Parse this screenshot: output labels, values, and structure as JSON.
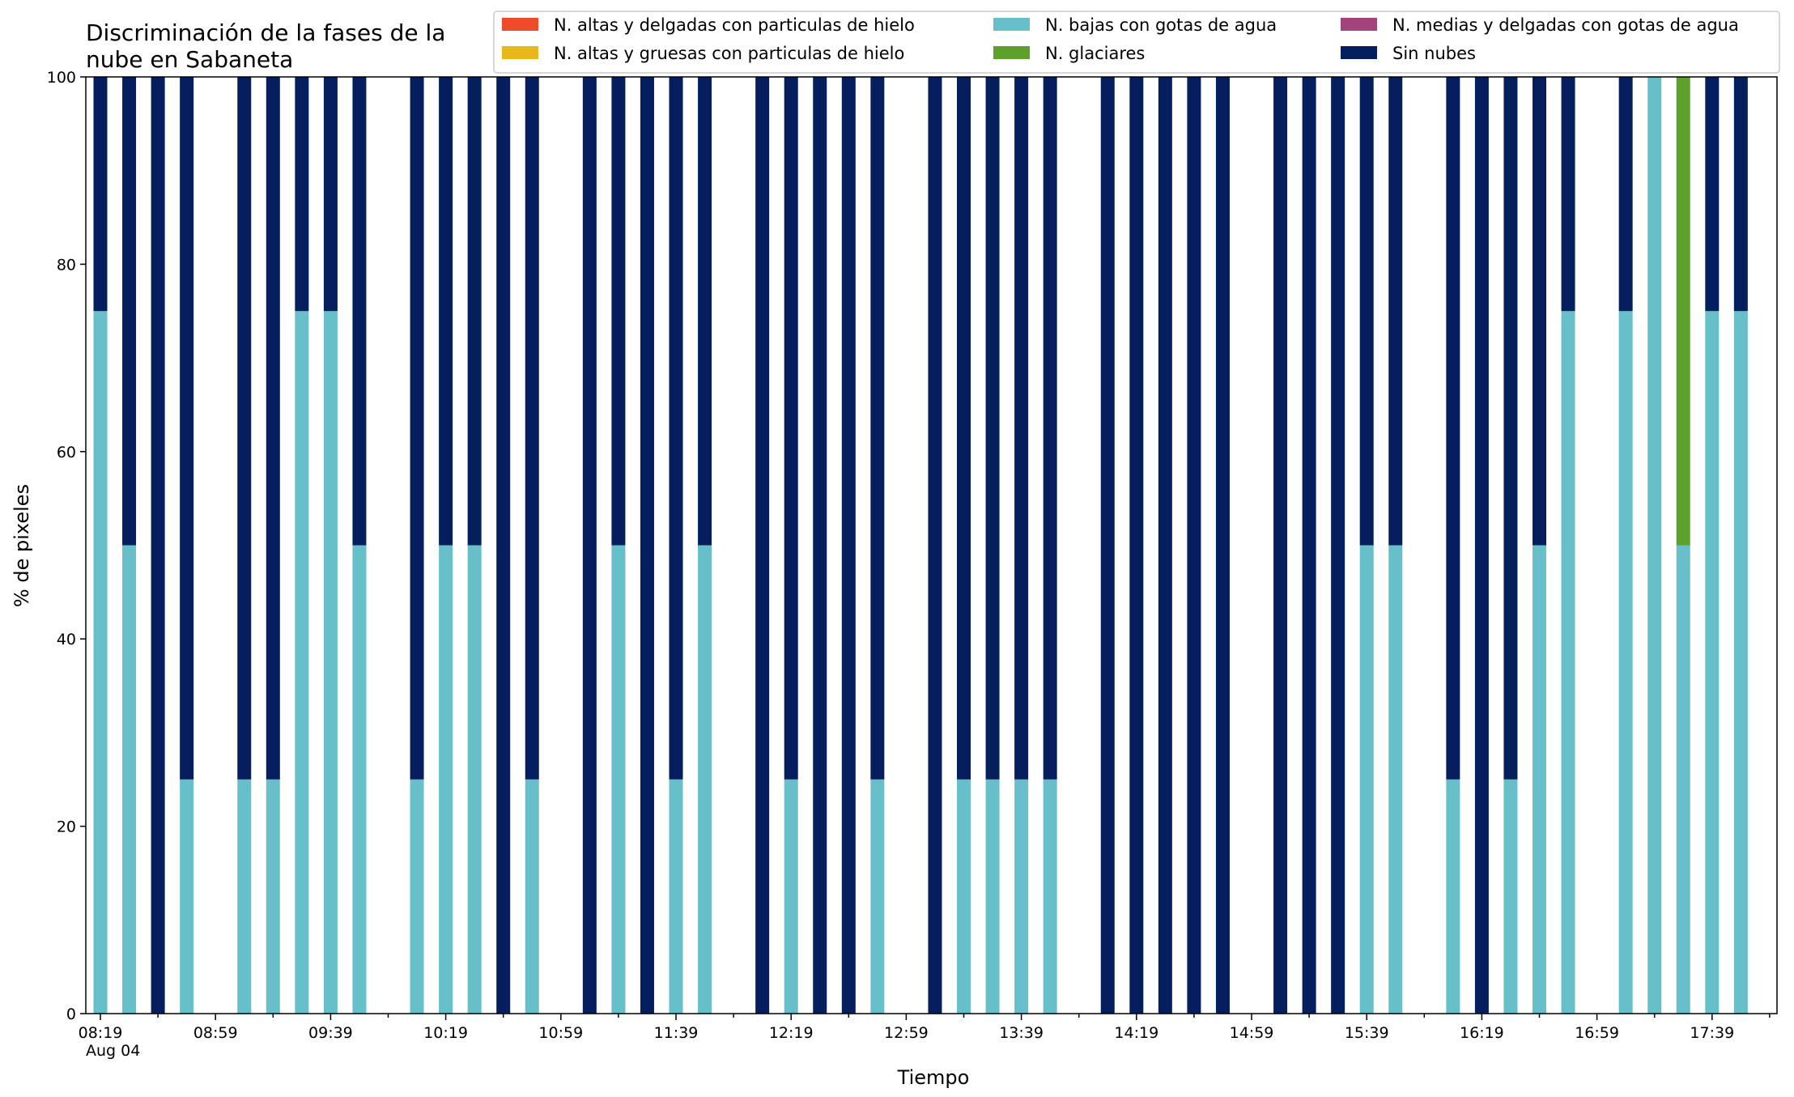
{
  "chart_data": {
    "type": "bar",
    "stacked": true,
    "title_lines": [
      "Discriminación de la fases de la",
      "nube en Sabaneta"
    ],
    "xlabel": "Tiempo",
    "ylabel": "% de pixeles",
    "ylim": [
      0,
      100
    ],
    "yticks": [
      0,
      20,
      40,
      60,
      80,
      100
    ],
    "grid": false,
    "legend_position": "top-right",
    "xtick_labels": [
      "08:19",
      "08:59",
      "09:39",
      "10:19",
      "10:59",
      "11:39",
      "12:19",
      "12:59",
      "13:39",
      "14:19",
      "14:59",
      "15:39",
      "16:19",
      "16:59",
      "17:39"
    ],
    "xtick_date": "Aug 04",
    "times": [
      "08:19",
      "08:29",
      "08:39",
      "08:49",
      "08:59",
      "09:09",
      "09:19",
      "09:29",
      "09:39",
      "09:49",
      "09:59",
      "10:09",
      "10:19",
      "10:29",
      "10:39",
      "10:49",
      "10:59",
      "11:09",
      "11:19",
      "11:29",
      "11:39",
      "11:49",
      "11:59",
      "12:09",
      "12:19",
      "12:29",
      "12:39",
      "12:49",
      "12:59",
      "13:09",
      "13:19",
      "13:29",
      "13:39",
      "13:49",
      "13:59",
      "14:09",
      "14:19",
      "14:29",
      "14:39",
      "14:49",
      "14:59",
      "15:09",
      "15:19",
      "15:29",
      "15:39",
      "15:49",
      "15:59",
      "16:09",
      "16:19",
      "16:29",
      "16:39",
      "16:49",
      "16:59",
      "17:09",
      "17:19",
      "17:29",
      "17:39",
      "17:49"
    ],
    "series": [
      {
        "name": "N. altas y delgadas con particulas de hielo",
        "color": "#EE4B2B",
        "values": [
          0,
          0,
          0,
          0,
          null,
          0,
          0,
          0,
          0,
          0,
          null,
          0,
          0,
          0,
          0,
          0,
          null,
          0,
          0,
          0,
          0,
          0,
          null,
          0,
          0,
          0,
          0,
          0,
          null,
          0,
          0,
          0,
          0,
          0,
          null,
          0,
          0,
          0,
          0,
          0,
          null,
          0,
          0,
          0,
          0,
          0,
          null,
          0,
          0,
          0,
          0,
          0,
          null,
          0,
          0,
          0,
          0,
          0
        ]
      },
      {
        "name": "N. altas y gruesas con particulas de hielo",
        "color": "#E8B81A",
        "values": [
          0,
          0,
          0,
          0,
          null,
          0,
          0,
          0,
          0,
          0,
          null,
          0,
          0,
          0,
          0,
          0,
          null,
          0,
          0,
          0,
          0,
          0,
          null,
          0,
          0,
          0,
          0,
          0,
          null,
          0,
          0,
          0,
          0,
          0,
          null,
          0,
          0,
          0,
          0,
          0,
          null,
          0,
          0,
          0,
          0,
          0,
          null,
          0,
          0,
          0,
          0,
          0,
          null,
          0,
          0,
          0,
          0,
          0
        ]
      },
      {
        "name": "N. bajas con gotas de agua",
        "color": "#67BFCA",
        "values": [
          75,
          50,
          0,
          25,
          null,
          25,
          25,
          75,
          75,
          50,
          null,
          25,
          50,
          50,
          0,
          25,
          null,
          0,
          50,
          0,
          25,
          50,
          null,
          0,
          25,
          0,
          0,
          25,
          null,
          0,
          25,
          25,
          25,
          25,
          null,
          0,
          0,
          0,
          0,
          0,
          null,
          0,
          0,
          0,
          50,
          50,
          null,
          25,
          0,
          25,
          50,
          75,
          null,
          75,
          100,
          50,
          75,
          75
        ]
      },
      {
        "name": "N. glaciares",
        "color": "#5DA02C",
        "values": [
          0,
          0,
          0,
          0,
          null,
          0,
          0,
          0,
          0,
          0,
          null,
          0,
          0,
          0,
          0,
          0,
          null,
          0,
          0,
          0,
          0,
          0,
          null,
          0,
          0,
          0,
          0,
          0,
          null,
          0,
          0,
          0,
          0,
          0,
          null,
          0,
          0,
          0,
          0,
          0,
          null,
          0,
          0,
          0,
          0,
          0,
          null,
          0,
          0,
          0,
          0,
          0,
          null,
          0,
          0,
          50,
          0,
          0
        ]
      },
      {
        "name": "N. medias y delgadas con gotas de agua",
        "color": "#A3437B",
        "values": [
          0,
          0,
          0,
          0,
          null,
          0,
          0,
          0,
          0,
          0,
          null,
          0,
          0,
          0,
          0,
          0,
          null,
          0,
          0,
          0,
          0,
          0,
          null,
          0,
          0,
          0,
          0,
          0,
          null,
          0,
          0,
          0,
          0,
          0,
          null,
          0,
          0,
          0,
          0,
          0,
          null,
          0,
          0,
          0,
          0,
          0,
          null,
          0,
          0,
          0,
          0,
          0,
          null,
          0,
          0,
          0,
          0,
          0
        ]
      },
      {
        "name": "Sin nubes",
        "color": "#041E5E",
        "values": [
          25,
          50,
          100,
          75,
          null,
          75,
          75,
          25,
          25,
          50,
          null,
          75,
          50,
          50,
          100,
          75,
          null,
          100,
          50,
          100,
          75,
          50,
          null,
          100,
          75,
          100,
          100,
          75,
          null,
          100,
          75,
          75,
          75,
          75,
          null,
          100,
          100,
          100,
          100,
          100,
          null,
          100,
          100,
          100,
          50,
          50,
          null,
          75,
          100,
          75,
          50,
          25,
          null,
          25,
          0,
          0,
          25,
          25
        ]
      }
    ]
  }
}
